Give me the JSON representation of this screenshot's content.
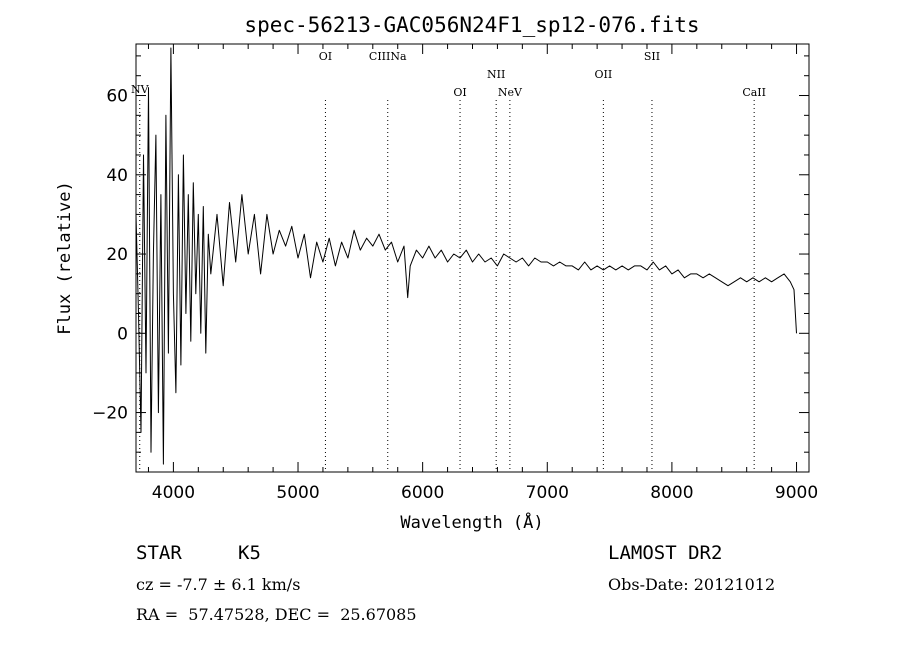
{
  "chart_data": {
    "type": "line",
    "title": "spec-56213-GAC056N24F1_sp12-076.fits",
    "xlabel": "Wavelength (Å)",
    "ylabel": "Flux (relative)",
    "xlim": [
      3700,
      9100
    ],
    "ylim": [
      -35,
      73
    ],
    "x_ticks": [
      4000,
      5000,
      6000,
      7000,
      8000,
      9000
    ],
    "y_ticks": [
      -20,
      0,
      20,
      40,
      60
    ],
    "grid": false,
    "series": [
      {
        "points": [
          [
            3700,
            30
          ],
          [
            3720,
            5
          ],
          [
            3740,
            -25
          ],
          [
            3760,
            45
          ],
          [
            3780,
            -10
          ],
          [
            3800,
            62
          ],
          [
            3820,
            -30
          ],
          [
            3840,
            20
          ],
          [
            3860,
            50
          ],
          [
            3880,
            -20
          ],
          [
            3900,
            35
          ],
          [
            3920,
            -33
          ],
          [
            3940,
            55
          ],
          [
            3960,
            -5
          ],
          [
            3980,
            72
          ],
          [
            4000,
            10
          ],
          [
            4020,
            -15
          ],
          [
            4040,
            40
          ],
          [
            4060,
            -8
          ],
          [
            4080,
            45
          ],
          [
            4100,
            5
          ],
          [
            4120,
            35
          ],
          [
            4140,
            -2
          ],
          [
            4160,
            38
          ],
          [
            4180,
            10
          ],
          [
            4200,
            30
          ],
          [
            4220,
            0
          ],
          [
            4240,
            32
          ],
          [
            4260,
            -5
          ],
          [
            4280,
            25
          ],
          [
            4300,
            15
          ],
          [
            4350,
            30
          ],
          [
            4400,
            12
          ],
          [
            4450,
            33
          ],
          [
            4500,
            18
          ],
          [
            4550,
            35
          ],
          [
            4600,
            20
          ],
          [
            4650,
            30
          ],
          [
            4700,
            15
          ],
          [
            4750,
            30
          ],
          [
            4800,
            20
          ],
          [
            4850,
            26
          ],
          [
            4900,
            22
          ],
          [
            4950,
            27
          ],
          [
            5000,
            19
          ],
          [
            5050,
            25
          ],
          [
            5100,
            14
          ],
          [
            5150,
            23
          ],
          [
            5200,
            18
          ],
          [
            5250,
            24
          ],
          [
            5300,
            17
          ],
          [
            5350,
            23
          ],
          [
            5400,
            19
          ],
          [
            5450,
            26
          ],
          [
            5500,
            21
          ],
          [
            5550,
            24
          ],
          [
            5600,
            22
          ],
          [
            5650,
            25
          ],
          [
            5700,
            21
          ],
          [
            5750,
            23
          ],
          [
            5800,
            18
          ],
          [
            5850,
            22
          ],
          [
            5880,
            9
          ],
          [
            5900,
            17
          ],
          [
            5950,
            21
          ],
          [
            6000,
            19
          ],
          [
            6050,
            22
          ],
          [
            6100,
            19
          ],
          [
            6150,
            21
          ],
          [
            6200,
            18
          ],
          [
            6250,
            20
          ],
          [
            6300,
            19
          ],
          [
            6350,
            21
          ],
          [
            6400,
            18
          ],
          [
            6450,
            20
          ],
          [
            6500,
            18
          ],
          [
            6550,
            19
          ],
          [
            6600,
            17
          ],
          [
            6650,
            20
          ],
          [
            6700,
            19
          ],
          [
            6750,
            18
          ],
          [
            6800,
            19
          ],
          [
            6850,
            17
          ],
          [
            6900,
            19
          ],
          [
            6950,
            18
          ],
          [
            7000,
            18
          ],
          [
            7050,
            17
          ],
          [
            7100,
            18
          ],
          [
            7150,
            17
          ],
          [
            7200,
            17
          ],
          [
            7250,
            16
          ],
          [
            7300,
            18
          ],
          [
            7350,
            16
          ],
          [
            7400,
            17
          ],
          [
            7450,
            16
          ],
          [
            7500,
            17
          ],
          [
            7550,
            16
          ],
          [
            7600,
            17
          ],
          [
            7650,
            16
          ],
          [
            7700,
            17
          ],
          [
            7750,
            17
          ],
          [
            7800,
            16
          ],
          [
            7850,
            18
          ],
          [
            7900,
            16
          ],
          [
            7950,
            17
          ],
          [
            8000,
            15
          ],
          [
            8050,
            16
          ],
          [
            8100,
            14
          ],
          [
            8150,
            15
          ],
          [
            8200,
            15
          ],
          [
            8250,
            14
          ],
          [
            8300,
            15
          ],
          [
            8350,
            14
          ],
          [
            8400,
            13
          ],
          [
            8450,
            12
          ],
          [
            8500,
            13
          ],
          [
            8550,
            14
          ],
          [
            8600,
            13
          ],
          [
            8650,
            14
          ],
          [
            8700,
            13
          ],
          [
            8750,
            14
          ],
          [
            8800,
            13
          ],
          [
            8850,
            14
          ],
          [
            8900,
            15
          ],
          [
            8950,
            13
          ],
          [
            8980,
            11
          ],
          [
            9000,
            0
          ]
        ]
      }
    ],
    "lines": [
      {
        "label": "NV",
        "wavelength": 3730
      },
      {
        "label": "OI",
        "wavelength": 5220
      },
      {
        "label": "CIIINa",
        "wavelength": 5720
      },
      {
        "label": "OI",
        "wavelength": 6300
      },
      {
        "label": "NII",
        "wavelength": 6590
      },
      {
        "label": "NeV",
        "wavelength": 6700
      },
      {
        "label": "OII",
        "wavelength": 7450
      },
      {
        "label": "SII",
        "wavelength": 7840
      },
      {
        "label": "CaII",
        "wavelength": 8660
      }
    ]
  },
  "info": {
    "object_class": "STAR",
    "subclass": "K5",
    "survey": "LAMOST DR2",
    "redshift": "cz = -7.7 ± 6.1 km/s",
    "obs_date": "Obs-Date: 20121012",
    "coords": "RA =  57.47528, DEC =  25.67085"
  }
}
